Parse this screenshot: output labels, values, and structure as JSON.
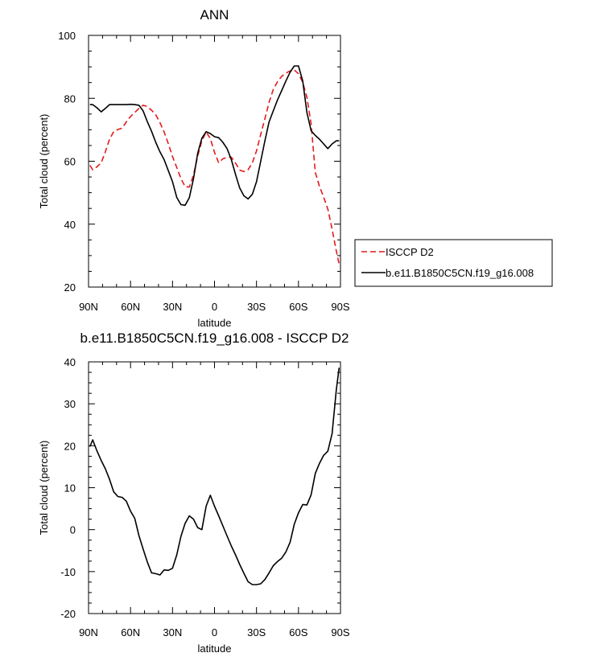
{
  "chart_data": [
    {
      "type": "line",
      "title": "ANN",
      "xlabel": "latitude",
      "ylabel": "Total cloud (percent)",
      "xlim": [
        90,
        -90
      ],
      "ylim": [
        20,
        100
      ],
      "xticks": [
        90,
        60,
        30,
        0,
        -30,
        -60,
        -90
      ],
      "xtick_labels": [
        "90N",
        "60N",
        "30N",
        "0",
        "30S",
        "60S",
        "90S"
      ],
      "yticks": [
        20,
        40,
        60,
        80,
        100
      ],
      "ytick_labels": [
        "20",
        "40",
        "60",
        "80",
        "100"
      ],
      "legend_position": "right",
      "series": [
        {
          "name": "ISCCP D2",
          "color": "#e41a1c",
          "dash": "dashed",
          "x": [
            89,
            87,
            84,
            81,
            78,
            75,
            72,
            69,
            66,
            63,
            60,
            57,
            54,
            51,
            48,
            45,
            42,
            39,
            36,
            33,
            30,
            27,
            24,
            21,
            18,
            15,
            12,
            9,
            6,
            3,
            0,
            -3,
            -6,
            -9,
            -12,
            -15,
            -18,
            -21,
            -24,
            -27,
            -30,
            -33,
            -36,
            -39,
            -42,
            -45,
            -48,
            -51,
            -54,
            -57,
            -60,
            -63,
            -66,
            -69,
            -72,
            -75,
            -78,
            -81,
            -84,
            -87,
            -89
          ],
          "y": [
            58.7,
            57.3,
            58.2,
            59.5,
            63.0,
            67.0,
            69.4,
            70.1,
            70.5,
            72.5,
            74.2,
            75.5,
            76.8,
            77.8,
            77.4,
            76.2,
            74.8,
            72.3,
            69.3,
            65.6,
            61.5,
            58.0,
            54.5,
            51.9,
            51.8,
            55.6,
            61.6,
            66.5,
            69.3,
            67.2,
            62.8,
            59.5,
            60.8,
            61.2,
            61.3,
            59.4,
            57.2,
            56.7,
            57.3,
            59.5,
            63.3,
            68.5,
            73.5,
            78.7,
            82.8,
            85.3,
            87.0,
            88.0,
            88.7,
            89.0,
            87.8,
            85.1,
            80.3,
            71.9,
            56.5,
            52.0,
            48.6,
            44.8,
            38.4,
            31.5,
            27.3
          ]
        },
        {
          "name": "b.e11.B1850C5CN.f19_g16.008",
          "color": "#000000",
          "dash": "solid",
          "x": [
            89,
            87,
            84,
            81,
            78,
            75,
            72,
            69,
            66,
            63,
            60,
            57,
            54,
            51,
            48,
            45,
            42,
            39,
            36,
            33,
            30,
            27,
            24,
            21,
            18,
            15,
            12,
            9,
            6,
            3,
            0,
            -3,
            -6,
            -9,
            -12,
            -15,
            -18,
            -21,
            -24,
            -27,
            -30,
            -33,
            -36,
            -39,
            -42,
            -45,
            -48,
            -51,
            -54,
            -57,
            -60,
            -63,
            -66,
            -69,
            -72,
            -75,
            -78,
            -81,
            -84,
            -87,
            -89
          ],
          "y": [
            78.0,
            78.0,
            77.0,
            75.7,
            76.8,
            78.0,
            78.0,
            78.0,
            78.0,
            78.0,
            78.1,
            78.0,
            77.8,
            76.0,
            72.6,
            69.5,
            66.0,
            63.0,
            60.5,
            57.0,
            53.5,
            48.5,
            46.2,
            46.0,
            48.4,
            54.5,
            62.5,
            67.3,
            69.4,
            68.8,
            67.8,
            67.5,
            66.0,
            64.0,
            60.5,
            55.8,
            51.5,
            49.0,
            48.0,
            49.5,
            53.5,
            60.0,
            66.5,
            72.5,
            76.0,
            79.5,
            82.5,
            85.5,
            88.3,
            90.3,
            90.3,
            85.5,
            75.5,
            69.7,
            68.2,
            67.0,
            65.5,
            64.0,
            65.5,
            66.5,
            66.5
          ]
        }
      ]
    },
    {
      "type": "line",
      "title": "b.e11.B1850C5CN.f19_g16.008 - ISCCP D2",
      "xlabel": "latitude",
      "ylabel": "Total cloud (percent)",
      "xlim": [
        90,
        -90
      ],
      "ylim": [
        -20,
        40
      ],
      "xticks": [
        90,
        60,
        30,
        0,
        -30,
        -60,
        -90
      ],
      "xtick_labels": [
        "90N",
        "60N",
        "30N",
        "0",
        "30S",
        "60S",
        "90S"
      ],
      "yticks": [
        -20,
        -10,
        0,
        10,
        20,
        30,
        40
      ],
      "ytick_labels": [
        "-20",
        "-10",
        "0",
        "10",
        "20",
        "30",
        "40"
      ],
      "series": [
        {
          "color": "#000000",
          "dash": "solid",
          "x": [
            89,
            87,
            84,
            81,
            78,
            75,
            72,
            69,
            66,
            63,
            60,
            57,
            54,
            51,
            48,
            45,
            42,
            39,
            36,
            33,
            30,
            27,
            24,
            21,
            18,
            15,
            12,
            9,
            6,
            3,
            0,
            -3,
            -6,
            -9,
            -12,
            -15,
            -18,
            -21,
            -24,
            -27,
            -30,
            -33,
            -36,
            -39,
            -42,
            -45,
            -48,
            -51,
            -54,
            -57,
            -60,
            -63,
            -66,
            -69,
            -72,
            -75,
            -78,
            -81,
            -84,
            -87,
            -89
          ],
          "y": [
            19.8,
            21.4,
            18.8,
            16.5,
            14.5,
            12.0,
            9.0,
            7.9,
            7.7,
            6.8,
            4.4,
            2.7,
            -1.4,
            -4.6,
            -7.7,
            -10.3,
            -10.5,
            -10.8,
            -9.6,
            -9.7,
            -9.2,
            -6.0,
            -1.6,
            1.5,
            3.3,
            2.5,
            0.5,
            0.0,
            5.6,
            8.2,
            5.6,
            3.3,
            0.9,
            -1.5,
            -3.9,
            -6.0,
            -8.3,
            -10.4,
            -12.4,
            -13.1,
            -13.1,
            -12.9,
            -11.9,
            -10.3,
            -8.6,
            -7.6,
            -6.8,
            -5.3,
            -3.0,
            1.3,
            4.0,
            6.0,
            5.9,
            8.3,
            13.4,
            15.8,
            17.7,
            18.7,
            22.9,
            33.3,
            38.6
          ]
        }
      ]
    }
  ]
}
